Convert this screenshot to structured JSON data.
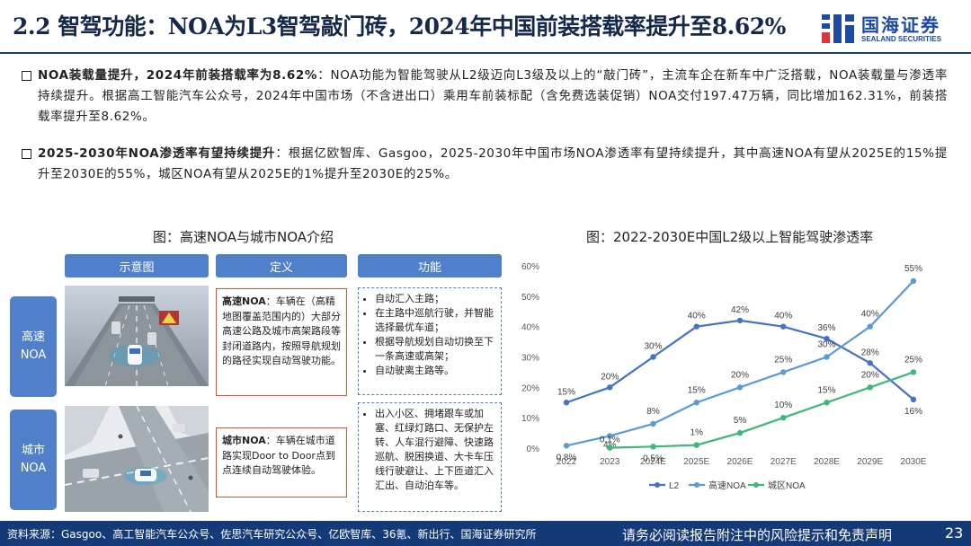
{
  "title": "2.2 智驾功能：NOA为L3智驾敲门砖，2024年中国前装搭载率提升至8.62%",
  "logo": {
    "name": "国海证券",
    "en": "SEALAND SECURITIES"
  },
  "bullets": [
    {
      "head": "NOA装载量提升，2024年前装搭载率为8.62%",
      "sep": "：",
      "body": "NOA功能为智能驾驶从L2级迈向L3级及以上的“敲门砖”，主流车企在新车中广泛搭载，NOA装载量与渗透率持续提升。根据高工智能汽车公众号，2024年中国市场（不含进出口）乘用车前装标配（含免费选装促销）NOA交付197.47万辆，同比增加162.31%，前装搭载率提升至8.62%。"
    },
    {
      "head": "2025-2030年NOA渗透率有望持续提升",
      "sep": "：",
      "body": "根据亿欧智库、Gasgoo，2025-2030年中国市场NOA渗透率有望持续提升，其中高速NOA有望从2025E的15%提升至2030E的55%，城区NOA有望从2025E的1%提升至2030E的25%。"
    }
  ],
  "left_figure": {
    "title": "图：高速NOA与城市NOA介绍",
    "headers": [
      "示意图",
      "定义",
      "功能"
    ],
    "rows": [
      {
        "label_lines": [
          "高速",
          "NOA"
        ],
        "def_head": "高速NOA",
        "def_sep": "：",
        "def_body": "车辆在（高精地图覆盖范围内的）大部分高速公路及城市高架路段等封闭道路内，按照导航规划的路径实现自动驾驶功能。",
        "functions": [
          "自动汇入主路；",
          "在主路中巡航行驶，并智能选择最优车道；",
          "根据导航规划自动切换至下一条高速或高架；",
          "自动驶离主路等。"
        ]
      },
      {
        "label_lines": [
          "城市",
          "NOA"
        ],
        "def_head": "城市NOA",
        "def_sep": "：",
        "def_body": "车辆在城市道路实现Door to Door点到点连续自动驾驶体验。",
        "functions": [
          "出入小区、拥堵跟车或加塞、红绿灯路口、无保护左转、人车混行避障、快速路巡航、脱困换道、大卡车压线行驶避让、上下匝道汇入汇出、自动泊车等。"
        ]
      }
    ]
  },
  "right_figure": {
    "title": "图：2022-2030E中国L2级以上智能驾驶渗透率"
  },
  "chart_data": {
    "type": "line",
    "categories": [
      "2022",
      "2023",
      "2024E",
      "2025E",
      "2026E",
      "2027E",
      "2028E",
      "2029E",
      "2030E"
    ],
    "ylim": [
      0,
      60
    ],
    "yticks": [
      "0%",
      "10%",
      "20%",
      "30%",
      "40%",
      "50%",
      "60%"
    ],
    "grid": false,
    "legend_position": "bottom",
    "series": [
      {
        "name": "L2",
        "color": "#4472c4",
        "values": [
          15,
          20,
          30,
          40,
          42,
          40,
          36,
          28,
          16
        ],
        "labels": [
          "15%",
          "20%",
          "30%",
          "40%",
          "42%",
          "40%",
          "36%",
          "28%",
          "16%"
        ]
      },
      {
        "name": "高速NOA",
        "color": "#5b9bd5",
        "values": [
          0.8,
          4,
          8,
          15,
          20,
          25,
          30,
          40,
          55
        ],
        "labels": [
          "0.8%",
          "4%",
          "8%",
          "15%",
          "20%",
          "25%",
          "30%",
          "40%",
          "55%"
        ]
      },
      {
        "name": "城区NOA",
        "color": "#3cb878",
        "values": [
          null,
          0.1,
          0.5,
          1,
          5,
          10,
          15,
          20,
          25
        ],
        "labels": [
          "",
          "0.1%",
          "0.5%",
          "1%",
          "5%",
          "10%",
          "15%",
          "20%",
          "25%"
        ]
      }
    ]
  },
  "footer": {
    "source": "资料来源：Gasgoo、高工智能汽车公众号、佐思汽车研究公众号、亿欧智库、36氪、新出行、国海证券研究所",
    "notice": "请务必阅读报告附注中的风险提示和免责声明",
    "page": "23"
  }
}
